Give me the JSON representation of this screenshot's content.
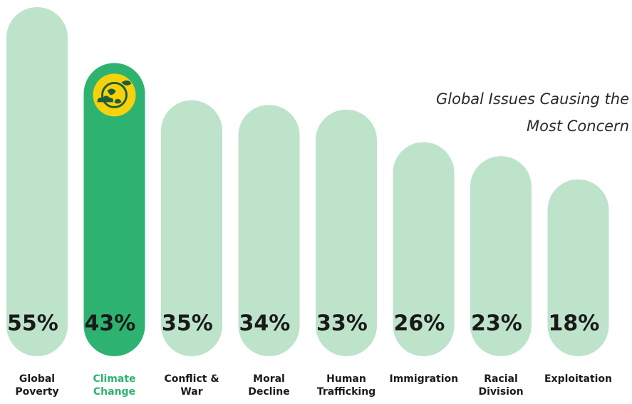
{
  "chart_data": {
    "type": "bar",
    "title": "Global Issues Causing the Most Concern",
    "categories": [
      "Global Poverty",
      "Climate Change",
      "Conflict & War",
      "Moral Decline",
      "Human Trafficking",
      "Immigration",
      "Racial Division",
      "Exploitation"
    ],
    "values": [
      55,
      43,
      35,
      34,
      33,
      26,
      23,
      18
    ],
    "value_labels": [
      "55%",
      "43%",
      "35%",
      "34%",
      "33%",
      "26%",
      "23%",
      "18%"
    ],
    "color": "#bde3cb",
    "highlight": {
      "index": 1,
      "color": "#2db36f"
    },
    "ylim": [
      -20,
      55
    ]
  }
}
